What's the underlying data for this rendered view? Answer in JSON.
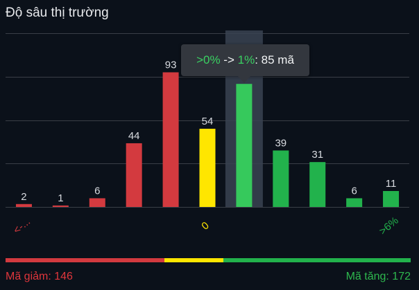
{
  "title": "Độ sâu thị trường",
  "tooltip": {
    "from": ">0%",
    "arrow": " -> ",
    "to": "1%",
    "value": ": 85 mã"
  },
  "summary": {
    "down_label": "Mã giảm: 146",
    "up_label": "Mã tăng: 172",
    "down_count": 146,
    "unchanged_count": 54,
    "up_count": 172
  },
  "colors": {
    "down": "#d33a3f",
    "flat": "#ffe600",
    "up": "#22b24c",
    "highlight": "#36c95c",
    "down_text": "#e0363c",
    "up_text": "#2eb84e",
    "grid": "#3a3f47",
    "hover_band": "#3a4352"
  },
  "chart_data": {
    "type": "bar",
    "title": "Độ sâu thị trường",
    "values": [
      2,
      1,
      6,
      44,
      93,
      54,
      85,
      39,
      31,
      6,
      11
    ],
    "data_labels": [
      "2",
      "1",
      "6",
      "44",
      "93",
      "54",
      "",
      "39",
      "31",
      "6",
      "11"
    ],
    "bar_colors": [
      "down",
      "down",
      "down",
      "down",
      "down",
      "flat",
      "highlight",
      "up",
      "up",
      "up",
      "up"
    ],
    "tick_labels": [
      "<-...",
      "",
      "",
      "",
      "",
      "0",
      "",
      "",
      "",
      "",
      ">6%"
    ],
    "tick_colors": [
      "down",
      "",
      "",
      "",
      "",
      "flat",
      "",
      "",
      "",
      "",
      "up"
    ],
    "highlighted_index": 6,
    "ylim": [
      0,
      120
    ],
    "grid": true
  }
}
